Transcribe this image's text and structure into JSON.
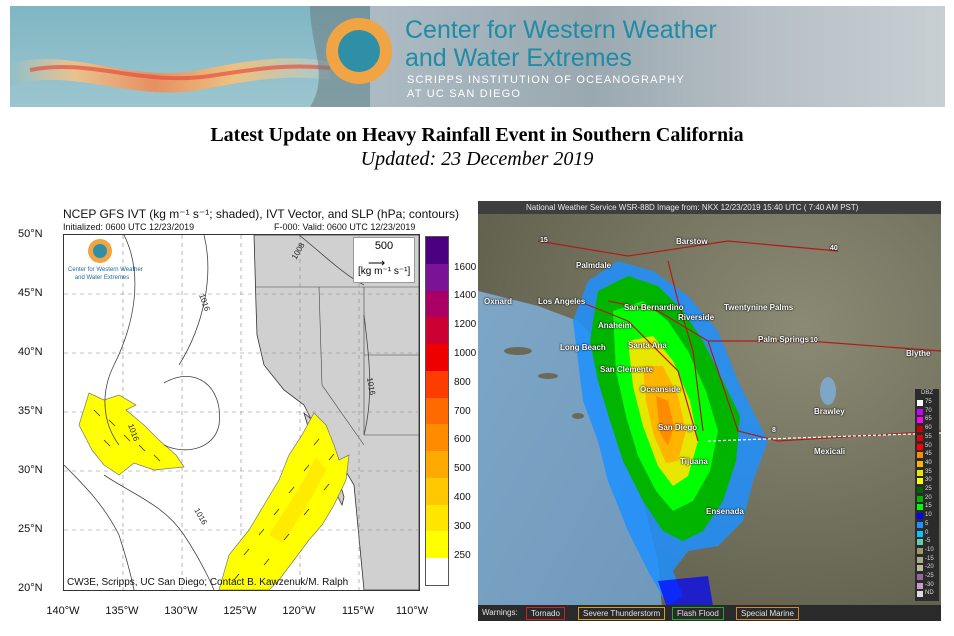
{
  "banner": {
    "title_line1": "Center for Western Weather",
    "title_line2": "and Water Extremes",
    "subtitle_line1": "SCRIPPS INSTITUTION  OF OCEANOGRAPHY",
    "subtitle_line2": "AT UC SAN DIEGO",
    "brand_color": "#1e8ca6",
    "logo_color_outer": "#f0a443",
    "logo_color_inner": "#2f8fa6"
  },
  "headline": "Latest Update on Heavy Rainfall Event in Southern California",
  "updated": "Updated: 23 December 2019",
  "ivt_map": {
    "title": "NCEP GFS IVT (kg m⁻¹ s⁻¹; shaded), IVT Vector, and SLP (hPa; contours)",
    "initialized": "Initialized: 0600 UTC 12/23/2019",
    "valid": "F-000: Valid: 0600 UTC 12/23/2019",
    "credit": "CW3E, Scripps, UC San Diego; Contact B. Kawzenuk/M. Ralph",
    "reference_vector_value": "500",
    "reference_vector_unit": "[kg m⁻¹ s⁻¹]",
    "logo_text_line1": "Center for Western Weather",
    "logo_text_line2": "and Water Extremes",
    "lat_labels": [
      "50°N",
      "45°N",
      "40°N",
      "35°N",
      "30°N",
      "25°N",
      "20°N"
    ],
    "lon_labels": [
      "140°W",
      "135°W",
      "130°W",
      "125°W",
      "120°W",
      "115°W",
      "110°W"
    ],
    "slp_contour_labels": [
      "1016",
      "1008",
      "1016",
      "1016",
      "1016"
    ],
    "colorbar": {
      "labels": [
        "1600",
        "1400",
        "1200",
        "1000",
        "800",
        "700",
        "600",
        "500",
        "400",
        "300",
        "250"
      ],
      "colors": [
        "#ffffff",
        "#ffff00",
        "#ffe600",
        "#ffc800",
        "#ffaa00",
        "#ff8c00",
        "#ff6a00",
        "#ff3c00",
        "#ee0000",
        "#cc0033",
        "#aa0066",
        "#7a1496",
        "#4b0082"
      ]
    }
  },
  "radar": {
    "header": "National Weather Service WSR-88D Image from: NKX 12/23/2019 15:40 UTC ( 7:40 AM PST)",
    "cities": [
      "Barstow",
      "Palmdale",
      "Oxnard",
      "Los Angeles",
      "San Bernardino",
      "Twentynine Palms",
      "Anaheim",
      "Riverside",
      "Long Beach",
      "Santa Ana",
      "Palm Springs",
      "Blythe",
      "San Clemente",
      "Oceanside",
      "Brawley",
      "San Diego",
      "Mexicali",
      "Tijuana",
      "Ensenada"
    ],
    "highway_labels": [
      "15",
      "40",
      "10",
      "8"
    ],
    "warnings": {
      "label": "Warnings:",
      "tornado": "Tornado",
      "severe": "Severe Thunderstorm",
      "flash": "Flash Flood",
      "marine": "Special Marine"
    },
    "dbz_scale": {
      "header": "DBZ",
      "labels": [
        "75",
        "70",
        "65",
        "60",
        "55",
        "50",
        "45",
        "40",
        "35",
        "30",
        "25",
        "20",
        "15",
        "10",
        "5",
        "0",
        "-5",
        "-10",
        "-15",
        "-20",
        "-25",
        "-30",
        "ND"
      ],
      "colors": [
        "#ffffff",
        "#c800ff",
        "#ff00ff",
        "#c80000",
        "#e60000",
        "#ff0000",
        "#ff8c00",
        "#ffb400",
        "#e6e600",
        "#ffff00",
        "#006400",
        "#00b400",
        "#00ff00",
        "#0000ff",
        "#1e90ff",
        "#00c8ff",
        "#66cdaa",
        "#999966",
        "#aaaa88",
        "#bbbb99",
        "#996699",
        "#cc99cc",
        "#dddddd"
      ]
    }
  }
}
